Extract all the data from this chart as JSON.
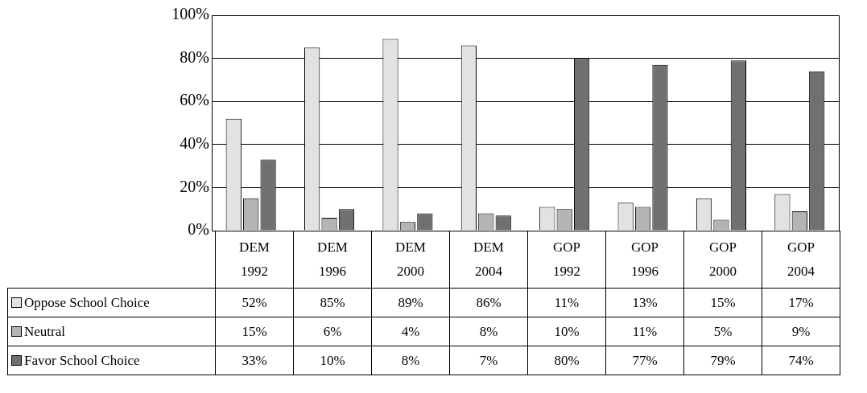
{
  "chart_data": {
    "type": "bar",
    "categories": [
      "DEM 1992",
      "DEM 1996",
      "DEM 2000",
      "DEM 2004",
      "GOP 1992",
      "GOP 1996",
      "GOP 2000",
      "GOP 2004"
    ],
    "series": [
      {
        "name": "Oppose School Choice",
        "color": "#e2e2e2",
        "values": [
          52,
          85,
          89,
          86,
          11,
          13,
          15,
          17
        ],
        "value_labels": [
          "52%",
          "85%",
          "89%",
          "86%",
          "11%",
          "13%",
          "15%",
          "17%"
        ]
      },
      {
        "name": "Neutral",
        "color": "#b4b4b4",
        "values": [
          15,
          6,
          4,
          8,
          10,
          11,
          5,
          9
        ],
        "value_labels": [
          "15%",
          "6%",
          "4%",
          "8%",
          "10%",
          "11%",
          "5%",
          "9%"
        ]
      },
      {
        "name": "Favor School Choice",
        "color": "#707070",
        "values": [
          33,
          10,
          8,
          7,
          80,
          77,
          79,
          74
        ],
        "value_labels": [
          "33%",
          "10%",
          "8%",
          "7%",
          "80%",
          "77%",
          "79%",
          "74%"
        ]
      }
    ],
    "ylim": [
      0,
      100
    ],
    "yticks": [
      {
        "value": 0,
        "label": "0%"
      },
      {
        "value": 20,
        "label": "20%"
      },
      {
        "value": 40,
        "label": "40%"
      },
      {
        "value": 60,
        "label": "60%"
      },
      {
        "value": 80,
        "label": "80%"
      },
      {
        "value": 100,
        "label": "100%"
      }
    ],
    "grid": "y",
    "legend": "bottom left"
  }
}
